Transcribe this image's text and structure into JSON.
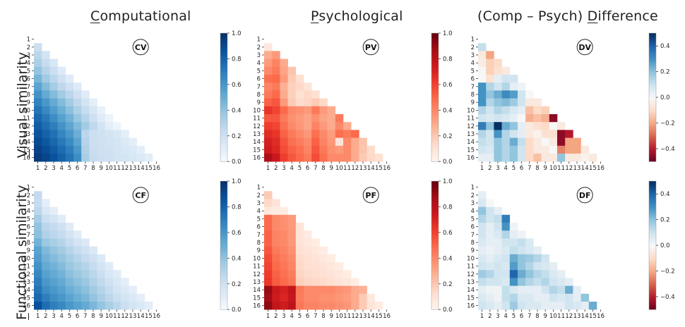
{
  "columns": [
    "Computational",
    "Psychological",
    "(Comp – Psych) Difference"
  ],
  "column_initials": [
    "C",
    "P",
    "D"
  ],
  "rows": [
    "Visual similarity",
    "Functional similarity"
  ],
  "row_initials": [
    "V",
    "F"
  ],
  "colors": {
    "blues": [
      "#f7fbff",
      "#deebf7",
      "#c6dbef",
      "#9ecae1",
      "#6baed6",
      "#4292c6",
      "#2171b5",
      "#08519c",
      "#08306b"
    ],
    "reds": [
      "#fff5f0",
      "#fee0d2",
      "#fcbba1",
      "#fc9272",
      "#fb6a4a",
      "#ef3b2c",
      "#cb181d",
      "#a50f15",
      "#67000d"
    ],
    "diverging": [
      "#67001f",
      "#b2182b",
      "#d6604d",
      "#f4a582",
      "#fddbc7",
      "#f7f7f7",
      "#d1e5f0",
      "#92c5de",
      "#4393c3",
      "#2166ac",
      "#053061"
    ]
  },
  "chart_data": [
    {
      "type": "heatmap",
      "id": "CV",
      "badge": "CV",
      "cmap": "blues",
      "vmin": 0.0,
      "vmax": 1.0,
      "colorbar_ticks": [
        "0.0",
        "0.2",
        "0.4",
        "0.6",
        "0.8",
        "1.0"
      ],
      "colorbar_values": [
        0.0,
        0.2,
        0.4,
        0.6,
        0.8,
        1.0
      ],
      "x_ticks": [
        "1",
        "2",
        "3",
        "4",
        "5",
        "6",
        "7",
        "8",
        "9",
        "10",
        "11",
        "12",
        "13",
        "14",
        "15",
        "16"
      ],
      "y_ticks": [
        "1",
        "2",
        "3",
        "4",
        "5",
        "6",
        "7",
        "8",
        "9",
        "10",
        "11",
        "12",
        "13",
        "14",
        "15",
        "16"
      ],
      "matrix": [
        [],
        [
          0.22
        ],
        [
          0.28,
          0.18
        ],
        [
          0.33,
          0.24,
          0.16
        ],
        [
          0.4,
          0.3,
          0.22,
          0.13
        ],
        [
          0.47,
          0.37,
          0.28,
          0.2,
          0.12
        ],
        [
          0.55,
          0.44,
          0.35,
          0.27,
          0.2,
          0.13
        ],
        [
          0.62,
          0.52,
          0.44,
          0.36,
          0.28,
          0.2,
          0.12
        ],
        [
          0.68,
          0.6,
          0.52,
          0.44,
          0.36,
          0.27,
          0.18,
          0.1
        ],
        [
          0.74,
          0.66,
          0.58,
          0.5,
          0.42,
          0.33,
          0.24,
          0.16,
          0.08
        ],
        [
          0.79,
          0.72,
          0.64,
          0.56,
          0.48,
          0.39,
          0.3,
          0.21,
          0.12,
          0.06
        ],
        [
          0.83,
          0.76,
          0.7,
          0.62,
          0.54,
          0.45,
          0.36,
          0.27,
          0.18,
          0.1,
          0.05
        ],
        [
          0.87,
          0.81,
          0.75,
          0.67,
          0.6,
          0.5,
          0.28,
          0.22,
          0.2,
          0.18,
          0.15,
          0.1
        ],
        [
          0.9,
          0.85,
          0.79,
          0.72,
          0.65,
          0.55,
          0.3,
          0.22,
          0.2,
          0.19,
          0.17,
          0.14,
          0.1
        ],
        [
          0.93,
          0.89,
          0.83,
          0.77,
          0.7,
          0.6,
          0.32,
          0.23,
          0.21,
          0.2,
          0.18,
          0.16,
          0.14,
          0.1
        ],
        [
          0.96,
          0.92,
          0.87,
          0.81,
          0.74,
          0.64,
          0.34,
          0.24,
          0.22,
          0.21,
          0.19,
          0.18,
          0.16,
          0.14,
          0.11
        ]
      ]
    },
    {
      "type": "heatmap",
      "id": "PV",
      "badge": "PV",
      "cmap": "reds",
      "vmin": 0.0,
      "vmax": 1.0,
      "colorbar_ticks": [
        "0.0",
        "0.2",
        "0.4",
        "0.6",
        "0.8",
        "1.0"
      ],
      "colorbar_values": [
        0.0,
        0.2,
        0.4,
        0.6,
        0.8,
        1.0
      ],
      "x_ticks": [
        "1",
        "2",
        "3",
        "4",
        "5",
        "6",
        "7",
        "8",
        "9",
        "10",
        "11",
        "12",
        "13",
        "14",
        "15",
        "16"
      ],
      "y_ticks": [
        "1",
        "2",
        "3",
        "4",
        "5",
        "6",
        "7",
        "8",
        "9",
        "10",
        "11",
        "12",
        "13",
        "14",
        "15",
        "16"
      ],
      "matrix": [
        [],
        [
          0.08
        ],
        [
          0.3,
          0.35
        ],
        [
          0.35,
          0.42,
          0.3
        ],
        [
          0.4,
          0.45,
          0.32,
          0.22
        ],
        [
          0.48,
          0.5,
          0.35,
          0.2,
          0.12
        ],
        [
          0.42,
          0.45,
          0.28,
          0.18,
          0.15,
          0.1
        ],
        [
          0.45,
          0.5,
          0.3,
          0.18,
          0.12,
          0.15,
          0.12
        ],
        [
          0.52,
          0.55,
          0.35,
          0.2,
          0.14,
          0.16,
          0.2,
          0.15
        ],
        [
          0.65,
          0.6,
          0.5,
          0.4,
          0.38,
          0.35,
          0.45,
          0.35,
          0.3
        ],
        [
          0.55,
          0.55,
          0.45,
          0.38,
          0.35,
          0.32,
          0.38,
          0.32,
          0.3,
          0.45
        ],
        [
          0.62,
          0.6,
          0.48,
          0.4,
          0.36,
          0.32,
          0.42,
          0.35,
          0.3,
          0.4,
          0.3
        ],
        [
          0.68,
          0.65,
          0.52,
          0.45,
          0.4,
          0.36,
          0.48,
          0.4,
          0.34,
          0.48,
          0.45,
          0.5
        ],
        [
          0.72,
          0.68,
          0.56,
          0.48,
          0.44,
          0.4,
          0.52,
          0.42,
          0.36,
          0.1,
          0.4,
          0.3,
          0.22
        ],
        [
          0.74,
          0.7,
          0.58,
          0.52,
          0.48,
          0.42,
          0.55,
          0.45,
          0.38,
          0.35,
          0.4,
          0.3,
          0.22,
          0.14
        ],
        [
          0.85,
          0.75,
          0.62,
          0.55,
          0.5,
          0.45,
          0.58,
          0.48,
          0.4,
          0.4,
          0.4,
          0.3,
          0.2,
          0.15,
          0.12
        ]
      ]
    },
    {
      "type": "heatmap",
      "id": "DV",
      "badge": "DV",
      "cmap": "diverging",
      "vmin": -0.5,
      "vmax": 0.5,
      "colorbar_ticks": [
        "−0.4",
        "−0.2",
        "0.0",
        "0.2",
        "0.4"
      ],
      "colorbar_values": [
        -0.4,
        -0.2,
        0.0,
        0.2,
        0.4
      ],
      "x_ticks": [
        "1",
        "2",
        "3",
        "4",
        "5",
        "6",
        "7",
        "8",
        "9",
        "10",
        "11",
        "12",
        "13",
        "14",
        "15",
        "16"
      ],
      "y_ticks": [
        "1",
        "2",
        "3",
        "4",
        "5",
        "6",
        "7",
        "8",
        "9",
        "10",
        "11",
        "12",
        "13",
        "14",
        "15",
        "16"
      ],
      "matrix": [
        [],
        [
          0.12
        ],
        [
          -0.05,
          -0.2
        ],
        [
          -0.04,
          -0.12,
          -0.1
        ],
        [
          0.0,
          -0.12,
          -0.08,
          -0.05
        ],
        [
          0.0,
          -0.08,
          0.05,
          0.1,
          0.1
        ],
        [
          0.3,
          0.15,
          0.1,
          0.15,
          0.05,
          0.02
        ],
        [
          0.3,
          0.2,
          0.25,
          0.32,
          0.28,
          0.1,
          0.0
        ],
        [
          0.3,
          0.15,
          0.2,
          0.22,
          0.18,
          0.1,
          -0.05,
          -0.05
        ],
        [
          0.15,
          0.1,
          0.15,
          0.12,
          0.08,
          0.05,
          -0.15,
          -0.1,
          -0.12
        ],
        [
          0.1,
          0.08,
          0.1,
          0.08,
          0.05,
          0.0,
          -0.18,
          -0.15,
          -0.18,
          -0.45
        ],
        [
          0.35,
          0.2,
          0.5,
          0.25,
          0.2,
          0.05,
          -0.05,
          -0.08,
          -0.1,
          0.0,
          -0.05
        ],
        [
          0.15,
          0.1,
          0.3,
          0.15,
          0.1,
          0.05,
          -0.05,
          -0.02,
          -0.08,
          -0.08,
          -0.45,
          -0.4
        ],
        [
          0.12,
          0.1,
          0.2,
          0.15,
          0.25,
          0.12,
          -0.1,
          -0.05,
          0.0,
          -0.05,
          -0.45,
          -0.2,
          -0.2
        ],
        [
          0.1,
          0.08,
          0.2,
          0.15,
          0.2,
          0.1,
          -0.1,
          -0.05,
          -0.05,
          0.0,
          -0.25,
          -0.2,
          -0.2,
          -0.05
        ],
        [
          0.05,
          0.05,
          0.2,
          0.15,
          0.2,
          0.1,
          -0.1,
          -0.15,
          -0.05,
          -0.05,
          0.2,
          -0.05,
          -0.05,
          -0.02,
          -0.05
        ]
      ]
    },
    {
      "type": "heatmap",
      "id": "CF",
      "badge": "CF",
      "cmap": "blues",
      "vmin": 0.0,
      "vmax": 1.0,
      "colorbar_ticks": [
        "0.0",
        "0.2",
        "0.4",
        "0.6",
        "0.8",
        "1.0"
      ],
      "colorbar_values": [
        0.0,
        0.2,
        0.4,
        0.6,
        0.8,
        1.0
      ],
      "x_ticks": [
        "1",
        "2",
        "3",
        "4",
        "5",
        "6",
        "7",
        "8",
        "9",
        "10",
        "11",
        "12",
        "13",
        "14",
        "15",
        "16"
      ],
      "y_ticks": [
        "1",
        "2",
        "3",
        "4",
        "5",
        "6",
        "7",
        "8",
        "9",
        "10",
        "11",
        "12",
        "13",
        "14",
        "15",
        "16"
      ],
      "matrix": [
        [],
        [
          0.25
        ],
        [
          0.24,
          0.1
        ],
        [
          0.28,
          0.15,
          0.1
        ],
        [
          0.35,
          0.22,
          0.18,
          0.12
        ],
        [
          0.4,
          0.28,
          0.25,
          0.2,
          0.12
        ],
        [
          0.42,
          0.32,
          0.28,
          0.25,
          0.18,
          0.12
        ],
        [
          0.48,
          0.38,
          0.34,
          0.3,
          0.24,
          0.18,
          0.14
        ],
        [
          0.55,
          0.45,
          0.4,
          0.36,
          0.3,
          0.25,
          0.2,
          0.14
        ],
        [
          0.58,
          0.48,
          0.44,
          0.4,
          0.35,
          0.3,
          0.25,
          0.2,
          0.14
        ],
        [
          0.62,
          0.52,
          0.48,
          0.44,
          0.38,
          0.34,
          0.3,
          0.24,
          0.18,
          0.12
        ],
        [
          0.66,
          0.56,
          0.52,
          0.48,
          0.42,
          0.38,
          0.34,
          0.28,
          0.22,
          0.16,
          0.12
        ],
        [
          0.7,
          0.6,
          0.56,
          0.52,
          0.46,
          0.42,
          0.38,
          0.32,
          0.26,
          0.2,
          0.15,
          0.1
        ],
        [
          0.74,
          0.64,
          0.6,
          0.56,
          0.5,
          0.46,
          0.42,
          0.36,
          0.3,
          0.24,
          0.18,
          0.14,
          0.1
        ],
        [
          0.78,
          0.7,
          0.64,
          0.6,
          0.55,
          0.5,
          0.46,
          0.4,
          0.34,
          0.28,
          0.22,
          0.18,
          0.14,
          0.1
        ],
        [
          0.88,
          0.76,
          0.7,
          0.66,
          0.6,
          0.56,
          0.52,
          0.46,
          0.4,
          0.34,
          0.28,
          0.22,
          0.18,
          0.14,
          0.1
        ]
      ]
    },
    {
      "type": "heatmap",
      "id": "PF",
      "badge": "PF",
      "cmap": "reds",
      "vmin": 0.0,
      "vmax": 1.0,
      "colorbar_ticks": [
        "0.0",
        "0.2",
        "0.4",
        "0.6",
        "0.8",
        "1.0"
      ],
      "colorbar_values": [
        0.0,
        0.2,
        0.4,
        0.6,
        0.8,
        1.0
      ],
      "x_ticks": [
        "1",
        "2",
        "3",
        "4",
        "5",
        "6",
        "7",
        "8",
        "9",
        "10",
        "11",
        "12",
        "13",
        "14",
        "15",
        "16"
      ],
      "y_ticks": [
        "1",
        "2",
        "3",
        "4",
        "5",
        "6",
        "7",
        "8",
        "9",
        "10",
        "11",
        "12",
        "13",
        "14",
        "15",
        "16"
      ],
      "matrix": [
        [],
        [
          0.2
        ],
        [
          0.15,
          0.1
        ],
        [
          0.08,
          0.06,
          0.05
        ],
        [
          0.5,
          0.4,
          0.38,
          0.35
        ],
        [
          0.5,
          0.4,
          0.38,
          0.35,
          0.1
        ],
        [
          0.52,
          0.42,
          0.4,
          0.36,
          0.1,
          0.06
        ],
        [
          0.52,
          0.42,
          0.4,
          0.36,
          0.1,
          0.08,
          0.05
        ],
        [
          0.55,
          0.45,
          0.42,
          0.38,
          0.12,
          0.1,
          0.08,
          0.05
        ],
        [
          0.58,
          0.48,
          0.44,
          0.4,
          0.14,
          0.12,
          0.1,
          0.08,
          0.05
        ],
        [
          0.6,
          0.5,
          0.46,
          0.42,
          0.15,
          0.13,
          0.12,
          0.1,
          0.08,
          0.05
        ],
        [
          0.62,
          0.52,
          0.48,
          0.44,
          0.16,
          0.14,
          0.13,
          0.12,
          0.1,
          0.08,
          0.05
        ],
        [
          0.64,
          0.54,
          0.5,
          0.46,
          0.18,
          0.16,
          0.15,
          0.14,
          0.12,
          0.1,
          0.08,
          0.05
        ],
        [
          0.9,
          0.75,
          0.72,
          0.78,
          0.45,
          0.4,
          0.4,
          0.4,
          0.4,
          0.38,
          0.36,
          0.3,
          0.28
        ],
        [
          0.88,
          0.74,
          0.7,
          0.76,
          0.44,
          0.4,
          0.4,
          0.38,
          0.38,
          0.36,
          0.34,
          0.3,
          0.2,
          0.08
        ],
        [
          0.92,
          0.78,
          0.74,
          0.8,
          0.46,
          0.42,
          0.42,
          0.4,
          0.4,
          0.38,
          0.36,
          0.3,
          0.2,
          0.1,
          0.06
        ]
      ]
    },
    {
      "type": "heatmap",
      "id": "DF",
      "badge": "DF",
      "cmap": "diverging",
      "vmin": -0.5,
      "vmax": 0.5,
      "colorbar_ticks": [
        "−0.4",
        "−0.2",
        "0.0",
        "0.2",
        "0.4"
      ],
      "colorbar_values": [
        -0.4,
        -0.2,
        0.0,
        0.2,
        0.4
      ],
      "x_ticks": [
        "1",
        "2",
        "3",
        "4",
        "5",
        "6",
        "7",
        "8",
        "9",
        "10",
        "11",
        "12",
        "13",
        "14",
        "15",
        "16"
      ],
      "y_ticks": [
        "1",
        "2",
        "3",
        "4",
        "5",
        "6",
        "7",
        "8",
        "9",
        "10",
        "11",
        "12",
        "13",
        "14",
        "15",
        "16"
      ],
      "matrix": [
        [],
        [
          0.05
        ],
        [
          0.08,
          0.0
        ],
        [
          0.2,
          0.1,
          0.05
        ],
        [
          0.15,
          0.1,
          0.12,
          0.35
        ],
        [
          0.1,
          0.05,
          0.1,
          0.3,
          0.02
        ],
        [
          0.1,
          0.05,
          0.08,
          0.15,
          0.05,
          0.02
        ],
        [
          0.08,
          0.05,
          0.05,
          0.1,
          0.1,
          0.12,
          0.08
        ],
        [
          0.05,
          0.03,
          0.05,
          0.08,
          0.12,
          0.1,
          0.08,
          0.05
        ],
        [
          0.08,
          0.05,
          0.08,
          0.1,
          0.25,
          0.2,
          0.18,
          0.15,
          0.1
        ],
        [
          0.1,
          0.08,
          0.1,
          0.08,
          0.28,
          0.2,
          0.15,
          0.1,
          0.08,
          0.05
        ],
        [
          0.18,
          0.15,
          0.1,
          0.1,
          0.4,
          0.25,
          0.2,
          0.15,
          0.12,
          0.08,
          0.05
        ],
        [
          0.12,
          0.1,
          0.1,
          0.08,
          0.3,
          0.2,
          0.15,
          0.12,
          0.15,
          0.1,
          0.08,
          0.05
        ],
        [
          0.05,
          0.02,
          0.02,
          0.12,
          0.08,
          0.05,
          0.05,
          0.05,
          0.1,
          0.15,
          0.12,
          0.25,
          0.05
        ],
        [
          0.08,
          0.05,
          0.02,
          0.12,
          0.15,
          0.08,
          0.08,
          0.05,
          0.05,
          0.1,
          0.08,
          0.1,
          0.05,
          0.2
        ],
        [
          0.1,
          0.08,
          0.05,
          0.1,
          0.18,
          0.1,
          0.08,
          0.08,
          0.05,
          0.05,
          0.05,
          0.1,
          0.08,
          0.05,
          0.25
        ]
      ]
    }
  ]
}
